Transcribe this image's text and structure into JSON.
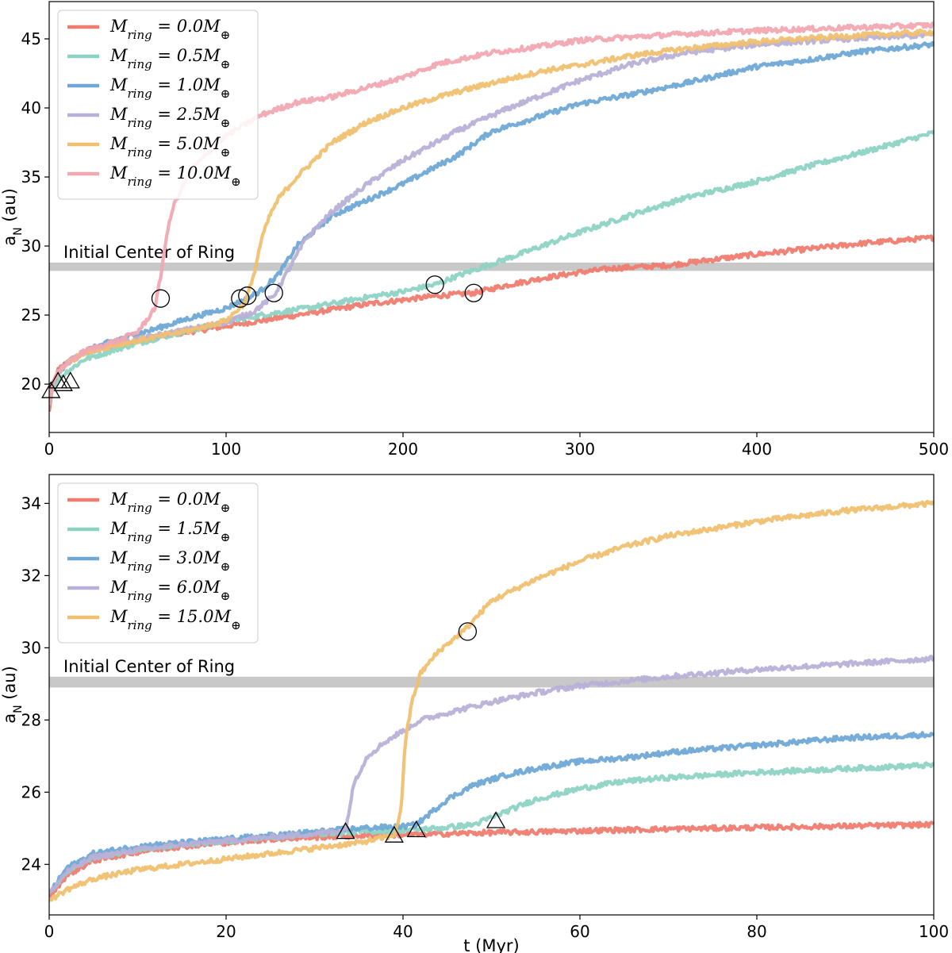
{
  "chart_data": [
    {
      "type": "line",
      "xlabel": "",
      "ylabel": "a_N (au)",
      "xlim": [
        0,
        500
      ],
      "ylim": [
        16.5,
        47.7
      ],
      "xticks": [
        0,
        100,
        200,
        300,
        400,
        500
      ],
      "yticks": [
        20,
        25,
        30,
        35,
        40,
        45
      ],
      "legend_placement": "top-left",
      "band": {
        "label": "Initial Center of Ring",
        "y_range": [
          28.2,
          28.8
        ],
        "color": "#c8c8c8"
      },
      "series": [
        {
          "name": "M_ring = 0.0M_⊕",
          "color": "#f07b6f",
          "x": [
            0,
            2,
            5,
            10,
            20,
            40,
            60,
            80,
            100,
            120,
            150,
            180,
            200,
            220,
            240,
            260,
            280,
            300,
            320,
            350,
            380,
            400,
            430,
            460,
            500
          ],
          "y": [
            18,
            20,
            21,
            21.6,
            22.3,
            22.9,
            23.4,
            23.8,
            24.2,
            24.6,
            25.2,
            25.8,
            26.1,
            26.4,
            26.6,
            27.2,
            27.7,
            28.1,
            28.4,
            28.6,
            29.1,
            29.4,
            29.8,
            30.2,
            30.6
          ]
        },
        {
          "name": "M_ring = 0.5M_⊕",
          "color": "#8dd3c4",
          "x": [
            0,
            2,
            5,
            10,
            20,
            40,
            60,
            80,
            100,
            120,
            150,
            180,
            200,
            218,
            230,
            250,
            270,
            300,
            330,
            360,
            400,
            430,
            460,
            500
          ],
          "y": [
            18.5,
            19.8,
            20.3,
            20.9,
            21.8,
            22.6,
            23.3,
            23.9,
            24.5,
            25,
            25.6,
            26.3,
            26.7,
            27.2,
            27.8,
            28.7,
            29.6,
            31,
            32.3,
            33.5,
            34.7,
            35.8,
            36.8,
            38.2
          ]
        },
        {
          "name": "M_ring = 1.0M_⊕",
          "color": "#6fa8d6",
          "x": [
            0,
            2,
            5,
            10,
            20,
            40,
            60,
            80,
            100,
            112,
            120,
            130,
            140,
            160,
            200,
            230,
            250,
            270,
            300,
            330,
            360,
            400,
            430,
            460,
            500
          ],
          "y": [
            18.5,
            20,
            20.8,
            21.5,
            22.4,
            23.3,
            24,
            24.8,
            25.5,
            26.2,
            26.8,
            28,
            30,
            32.2,
            34.5,
            36.5,
            38.3,
            39.1,
            40.3,
            41,
            41.8,
            43,
            43.5,
            44.1,
            44.6
          ]
        },
        {
          "name": "M_ring = 2.5M_⊕",
          "color": "#b9b0d8",
          "x": [
            0,
            2,
            5,
            10,
            20,
            40,
            60,
            80,
            100,
            115,
            127,
            135,
            145,
            160,
            180,
            200,
            230,
            260,
            280,
            300,
            330,
            360,
            400,
            450,
            500
          ],
          "y": [
            18.5,
            20,
            20.8,
            21.5,
            22.3,
            23,
            23.5,
            24,
            24.5,
            25.2,
            26.4,
            28.2,
            30.5,
            32.5,
            34.5,
            36.2,
            38.3,
            40,
            41,
            42,
            43.2,
            44,
            44.6,
            45,
            45.3
          ]
        },
        {
          "name": "M_ring = 5.0M_⊕",
          "color": "#f0c070",
          "x": [
            0,
            2,
            5,
            10,
            20,
            40,
            60,
            80,
            100,
            110,
            115,
            120,
            125,
            130,
            140,
            160,
            180,
            200,
            220,
            250,
            280,
            300,
            330,
            360,
            400,
            450,
            500
          ],
          "y": [
            18.5,
            20,
            20.8,
            21.5,
            22.3,
            22.9,
            23.4,
            23.9,
            24.6,
            25.8,
            27.5,
            30.5,
            32.3,
            33.5,
            35,
            37.5,
            39,
            40,
            40.8,
            41.8,
            42.7,
            43.1,
            43.8,
            44.3,
            44.8,
            45.2,
            45.5
          ]
        },
        {
          "name": "M_ring = 10.0M_⊕",
          "color": "#f2a7b2",
          "x": [
            0,
            2,
            5,
            10,
            20,
            40,
            50,
            55,
            60,
            63,
            66,
            70,
            75,
            80,
            100,
            120,
            140,
            160,
            180,
            200,
            220,
            250,
            280,
            300,
            350,
            400,
            450,
            500
          ],
          "y": [
            18.5,
            20,
            20.8,
            21.5,
            22.4,
            23.2,
            23.8,
            24.6,
            25.6,
            27.8,
            30.5,
            32.8,
            34.2,
            35.5,
            38,
            39.5,
            40.4,
            40.8,
            41.5,
            42.2,
            43.2,
            44,
            44.5,
            44.9,
            45.3,
            45.6,
            45.8,
            46
          ]
        }
      ],
      "markers": {
        "triangles": [
          [
            1,
            19.5
          ],
          [
            5,
            20.2
          ],
          [
            8,
            20
          ],
          [
            12,
            20.2
          ]
        ],
        "circles": [
          [
            63,
            26.2
          ],
          [
            108,
            26.2
          ],
          [
            112,
            26.4
          ],
          [
            127,
            26.6
          ],
          [
            218,
            27.2
          ],
          [
            240,
            26.6
          ]
        ]
      }
    },
    {
      "type": "line",
      "xlabel": "t (Myr)",
      "ylabel": "a_N (au)",
      "xlim": [
        0,
        100
      ],
      "ylim": [
        22.6,
        34.8
      ],
      "xticks": [
        0,
        20,
        40,
        60,
        80,
        100
      ],
      "yticks": [
        24,
        26,
        28,
        30,
        32,
        34
      ],
      "legend_placement": "top-left",
      "band": {
        "label": "Initial Center of Ring",
        "y_range": [
          28.9,
          29.2
        ],
        "color": "#c8c8c8"
      },
      "series": [
        {
          "name": "M_ring = 0.0M_⊕",
          "color": "#f07b6f",
          "x": [
            0,
            2,
            5,
            10,
            15,
            20,
            25,
            30,
            35,
            40,
            45,
            50,
            55,
            60,
            70,
            80,
            90,
            100
          ],
          "y": [
            23.1,
            23.7,
            24.1,
            24.35,
            24.5,
            24.6,
            24.7,
            24.75,
            24.8,
            24.82,
            24.85,
            24.88,
            24.9,
            24.93,
            24.98,
            25.02,
            25.06,
            25.1
          ]
        },
        {
          "name": "M_ring = 1.5M_⊕",
          "color": "#8dd3c4",
          "x": [
            0,
            2,
            5,
            10,
            15,
            20,
            25,
            30,
            35,
            40,
            44,
            48,
            50,
            52,
            55,
            60,
            65,
            70,
            80,
            90,
            100
          ],
          "y": [
            23.2,
            23.8,
            24.2,
            24.4,
            24.55,
            24.65,
            24.75,
            24.85,
            24.9,
            24.95,
            25,
            25.1,
            25.3,
            25.5,
            25.8,
            26.1,
            26.3,
            26.4,
            26.55,
            26.65,
            26.75
          ]
        },
        {
          "name": "M_ring = 3.0M_⊕",
          "color": "#6fa8d6",
          "x": [
            0,
            2,
            5,
            10,
            15,
            20,
            25,
            30,
            35,
            40,
            41.5,
            43,
            45,
            48,
            52,
            56,
            60,
            65,
            70,
            80,
            90,
            100
          ],
          "y": [
            23.2,
            23.9,
            24.3,
            24.5,
            24.6,
            24.7,
            24.8,
            24.9,
            25,
            25.05,
            25.1,
            25.4,
            25.8,
            26.2,
            26.5,
            26.7,
            26.85,
            26.95,
            27.1,
            27.3,
            27.5,
            27.6
          ]
        },
        {
          "name": "M_ring = 6.0M_⊕",
          "color": "#b9b0d8",
          "x": [
            0,
            2,
            5,
            10,
            15,
            20,
            25,
            30,
            33.5,
            34.5,
            36,
            38,
            40,
            42,
            45,
            50,
            55,
            60,
            70,
            80,
            90,
            100
          ],
          "y": [
            23.2,
            23.8,
            24.2,
            24.4,
            24.55,
            24.65,
            24.75,
            24.85,
            24.95,
            26.3,
            27,
            27.4,
            27.7,
            28,
            28.2,
            28.5,
            28.75,
            28.95,
            29.2,
            29.4,
            29.55,
            29.7
          ]
        },
        {
          "name": "M_ring = 15.0M_⊕",
          "color": "#f0c070",
          "x": [
            0,
            2,
            5,
            10,
            15,
            20,
            25,
            30,
            35,
            39,
            39.8,
            40.2,
            41,
            42,
            44,
            47,
            50,
            55,
            60,
            65,
            70,
            80,
            90,
            100
          ],
          "y": [
            23.0,
            23.3,
            23.6,
            23.85,
            24,
            24.15,
            24.3,
            24.45,
            24.6,
            24.8,
            25.5,
            27.3,
            28.5,
            29.3,
            29.9,
            30.5,
            31.3,
            31.9,
            32.4,
            32.8,
            33.1,
            33.5,
            33.8,
            34
          ]
        }
      ],
      "markers": {
        "triangles": [
          [
            33.5,
            24.9
          ],
          [
            39,
            24.8
          ],
          [
            41.5,
            24.95
          ],
          [
            50.5,
            25.2
          ]
        ],
        "circles": [
          [
            47.3,
            30.45
          ]
        ]
      }
    }
  ]
}
